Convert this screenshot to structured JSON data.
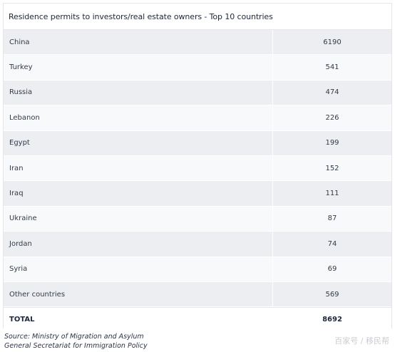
{
  "table": {
    "title": "Residence permits to investors/real estate owners - Top 10 countries",
    "rows": [
      {
        "country": "China",
        "value": "6190"
      },
      {
        "country": "Turkey",
        "value": "541"
      },
      {
        "country": "Russia",
        "value": "474"
      },
      {
        "country": "Lebanon",
        "value": "226"
      },
      {
        "country": "Egypt",
        "value": "199"
      },
      {
        "country": "Iran",
        "value": "152"
      },
      {
        "country": "Iraq",
        "value": "111"
      },
      {
        "country": "Ukraine",
        "value": "87"
      },
      {
        "country": "Jordan",
        "value": "74"
      },
      {
        "country": "Syria",
        "value": "69"
      },
      {
        "country": "Other countries",
        "value": "569"
      }
    ],
    "total": {
      "label": "TOTAL",
      "value": "8692"
    }
  },
  "source": {
    "line1": "Source: Ministry of Migration and Asylum",
    "line2": "General Secretariat for Immigration Policy"
  },
  "watermark": "百家号 / 移民帮"
}
